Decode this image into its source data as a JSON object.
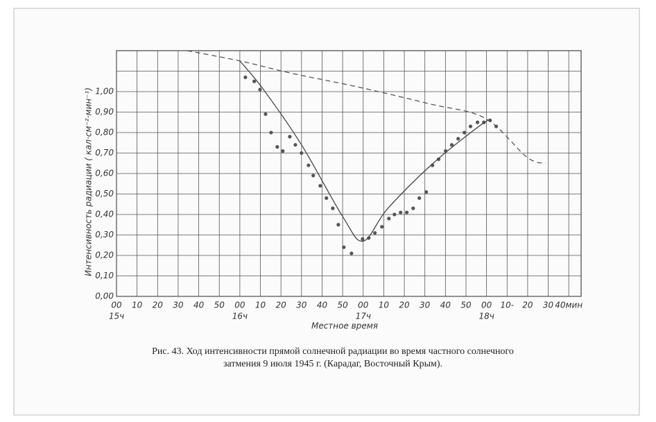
{
  "chart_data": {
    "type": "line",
    "ylabel": "Интенсивность радиации ( кал·см⁻²·мин⁻¹)",
    "xlabel": "Местное время",
    "caption": [
      "Рис. 43. Ход интенсивности прямой солнечной радиации во время частного солнечного",
      "затмения 9 июля 1945 г. (Карадаг, Восточный Крым)."
    ],
    "xlim": [
      0,
      226
    ],
    "ylim": [
      0,
      1.2
    ],
    "grid": true,
    "xticks": [
      {
        "value": 0,
        "label": "00"
      },
      {
        "value": 10,
        "label": "10"
      },
      {
        "value": 20,
        "label": "20"
      },
      {
        "value": 30,
        "label": "30"
      },
      {
        "value": 40,
        "label": "40"
      },
      {
        "value": 50,
        "label": "50"
      },
      {
        "value": 60,
        "label": "00"
      },
      {
        "value": 70,
        "label": "10"
      },
      {
        "value": 80,
        "label": "20"
      },
      {
        "value": 90,
        "label": "30"
      },
      {
        "value": 100,
        "label": "40"
      },
      {
        "value": 110,
        "label": "50"
      },
      {
        "value": 120,
        "label": "00"
      },
      {
        "value": 130,
        "label": "10"
      },
      {
        "value": 140,
        "label": "20"
      },
      {
        "value": 150,
        "label": "30"
      },
      {
        "value": 160,
        "label": "40"
      },
      {
        "value": 170,
        "label": "50"
      },
      {
        "value": 180,
        "label": "00"
      },
      {
        "value": 190,
        "label": "10-"
      },
      {
        "value": 200,
        "label": "20"
      },
      {
        "value": 210,
        "label": "30"
      },
      {
        "value": 220,
        "label": "40мин"
      }
    ],
    "xhour_labels": [
      {
        "value": 0,
        "label": "15ч"
      },
      {
        "value": 60,
        "label": "16ч"
      },
      {
        "value": 120,
        "label": "17ч"
      },
      {
        "value": 180,
        "label": "18ч"
      }
    ],
    "yticks": [
      {
        "value": 0,
        "label": "0,00"
      },
      {
        "value": 0.1,
        "label": "0,10"
      },
      {
        "value": 0.2,
        "label": "0,20"
      },
      {
        "value": 0.3,
        "label": "0,30"
      },
      {
        "value": 0.4,
        "label": "0,40"
      },
      {
        "value": 0.5,
        "label": "0,50"
      },
      {
        "value": 0.6,
        "label": "0,60"
      },
      {
        "value": 0.7,
        "label": "0,70"
      },
      {
        "value": 0.8,
        "label": "0,80"
      },
      {
        "value": 0.9,
        "label": "0,90"
      },
      {
        "value": 1.0,
        "label": "1,00"
      }
    ],
    "extra_ygrid": [
      1.1
    ],
    "series": [
      {
        "style": "points",
        "color": "#555555",
        "x": [
          62.7,
          67,
          69.8,
          72.5,
          75.2,
          78.2,
          80.9,
          84.3,
          87,
          90,
          93.4,
          95.7,
          99.1,
          102.1,
          105.2,
          107.9,
          110.6,
          114.3,
          119.7,
          122.7,
          125.7,
          129.1,
          132.5,
          135.2,
          138.2,
          141.2,
          144.3,
          147.3,
          150.7,
          153.7,
          156.7,
          160.1,
          163.1,
          166.2,
          169.2,
          172.2,
          175.6,
          178.7,
          181.7,
          184.7
        ],
        "values": [
          1.07,
          1.05,
          1.01,
          0.89,
          0.8,
          0.73,
          0.71,
          0.78,
          0.74,
          0.7,
          0.64,
          0.59,
          0.54,
          0.48,
          0.43,
          0.35,
          0.24,
          0.21,
          0.28,
          0.285,
          0.31,
          0.34,
          0.38,
          0.4,
          0.41,
          0.41,
          0.43,
          0.48,
          0.51,
          0.64,
          0.67,
          0.71,
          0.74,
          0.77,
          0.8,
          0.83,
          0.85,
          0.85,
          0.86,
          0.83
        ]
      },
      {
        "style": "solid",
        "color": "#444444",
        "x": [
          60,
          71.5,
          90,
          110,
          120,
          132,
          154,
          177.6,
          182.5
        ],
        "values": [
          1.15,
          1.01,
          0.74,
          0.39,
          0.27,
          0.43,
          0.65,
          0.84,
          0.86
        ]
      },
      {
        "style": "dashed",
        "color": "#555555",
        "x": [
          34.4,
          60,
          85,
          118.7,
          152.4,
          179.3,
          199.6,
          208.7
        ],
        "values": [
          1.2,
          1.15,
          1.09,
          1.02,
          0.94,
          0.87,
          0.68,
          0.65
        ]
      }
    ]
  }
}
